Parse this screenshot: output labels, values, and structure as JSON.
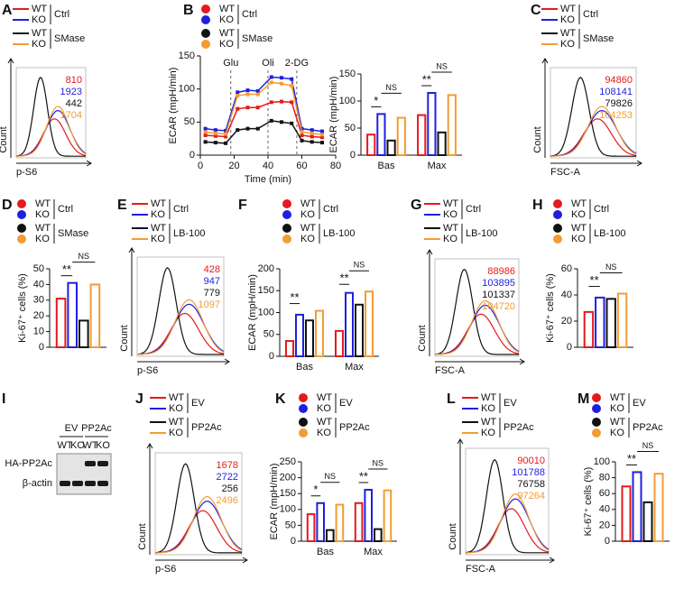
{
  "chart_data": [
    {
      "type": "flow",
      "panel": "A",
      "ylabel": "Count",
      "xlabel": "p-S6",
      "legend_marker": "line",
      "legend_groups": [
        "Ctrl",
        "SMase"
      ],
      "series": [
        {
          "name": "WT",
          "color": "#e41a1c",
          "value": 810
        },
        {
          "name": "KO",
          "color": "#1f1fe0",
          "value": 1923
        },
        {
          "name": "WT",
          "color": "#111111",
          "value": 442
        },
        {
          "name": "KO",
          "color": "#f39c34",
          "value": 1704
        }
      ]
    },
    {
      "type": "line",
      "panel": "B",
      "ylabel": "ECAR (mpH/min)",
      "xlabel": "Time (min)",
      "legend_marker": "dot",
      "legend_groups": [
        "Ctrl",
        "SMase"
      ],
      "xlim": [
        0,
        80
      ],
      "xticks": [
        0,
        20,
        40,
        60,
        80
      ],
      "ylim": [
        0,
        150
      ],
      "yticks": [
        0,
        50,
        100,
        150
      ],
      "vlines": [
        {
          "x": 18,
          "label": "Glu"
        },
        {
          "x": 40,
          "label": "Oli"
        },
        {
          "x": 57,
          "label": "2-DG"
        }
      ],
      "x": [
        3,
        9,
        15,
        22,
        28,
        34,
        42,
        48,
        54,
        60,
        66,
        72
      ],
      "series": [
        {
          "name": "WT",
          "color": "#e41a1c",
          "values": [
            30,
            29,
            28,
            70,
            72,
            72,
            80,
            81,
            80,
            30,
            28,
            27
          ]
        },
        {
          "name": "KO",
          "color": "#1f1fe0",
          "values": [
            40,
            38,
            37,
            95,
            98,
            97,
            118,
            117,
            115,
            40,
            38,
            36
          ]
        },
        {
          "name": "WT",
          "color": "#111111",
          "values": [
            20,
            19,
            18,
            38,
            40,
            40,
            52,
            50,
            48,
            22,
            20,
            19
          ]
        },
        {
          "name": "KO",
          "color": "#f39c34",
          "values": [
            35,
            33,
            32,
            90,
            92,
            92,
            110,
            108,
            105,
            35,
            33,
            31
          ]
        }
      ]
    },
    {
      "type": "bar",
      "ylabel": "ECAR (mpH/min)",
      "categories": [
        "Bas",
        "Max"
      ],
      "ylim": [
        0,
        150
      ],
      "yticks": [
        0,
        50,
        100,
        150
      ],
      "series": [
        {
          "color": "#e41a1c",
          "values": [
            38,
            74
          ]
        },
        {
          "color": "#1f1fe0",
          "values": [
            76,
            115
          ]
        },
        {
          "color": "#111111",
          "values": [
            27,
            42
          ]
        },
        {
          "color": "#f39c34",
          "values": [
            69,
            111
          ]
        }
      ],
      "significance": [
        {
          "label": "*",
          "category": 0,
          "series": [
            0,
            1
          ]
        },
        {
          "label": "NS",
          "category": 0,
          "series": [
            1,
            3
          ]
        },
        {
          "label": "**",
          "category": 1,
          "series": [
            0,
            1
          ]
        },
        {
          "label": "NS",
          "category": 1,
          "series": [
            1,
            3
          ]
        }
      ]
    },
    {
      "type": "flow",
      "panel": "C",
      "ylabel": "Count",
      "xlabel": "FSC-A",
      "legend_marker": "line",
      "legend_groups": [
        "Ctrl",
        "SMase"
      ],
      "series": [
        {
          "name": "WT",
          "color": "#e41a1c",
          "value": 94860
        },
        {
          "name": "KO",
          "color": "#1f1fe0",
          "value": 108141
        },
        {
          "name": "WT",
          "color": "#111111",
          "value": 79826
        },
        {
          "name": "KO",
          "color": "#f39c34",
          "value": 104253
        }
      ]
    },
    {
      "type": "bar",
      "panel": "D",
      "ylabel": "Ki-67⁺ cells (%)",
      "legend_marker": "dot",
      "legend_groups": [
        "Ctrl",
        "SMase"
      ],
      "ylim": [
        0,
        50
      ],
      "yticks": [
        0,
        10,
        20,
        30,
        40,
        50
      ],
      "series": [
        {
          "name": "WT",
          "color": "#e41a1c",
          "values": [
            31
          ]
        },
        {
          "name": "KO",
          "color": "#1f1fe0",
          "values": [
            41
          ]
        },
        {
          "name": "WT",
          "color": "#111111",
          "values": [
            17
          ]
        },
        {
          "name": "KO",
          "color": "#f39c34",
          "values": [
            40
          ]
        }
      ],
      "significance": [
        {
          "label": "**",
          "category": 0,
          "series": [
            0,
            1
          ]
        },
        {
          "label": "NS",
          "category": 0,
          "series": [
            1,
            3
          ]
        }
      ]
    },
    {
      "type": "flow",
      "panel": "E",
      "ylabel": "Count",
      "xlabel": "p-S6",
      "legend_marker": "line",
      "legend_groups": [
        "Ctrl",
        "LB-100"
      ],
      "series": [
        {
          "name": "WT",
          "color": "#e41a1c",
          "value": 428
        },
        {
          "name": "KO",
          "color": "#1f1fe0",
          "value": 947
        },
        {
          "name": "WT",
          "color": "#111111",
          "value": 779
        },
        {
          "name": "KO",
          "color": "#f39c34",
          "value": 1097
        }
      ]
    },
    {
      "type": "bar",
      "panel": "F",
      "ylabel": "ECAR (mpH/min)",
      "legend_marker": "dot",
      "legend_groups": [
        "Ctrl",
        "LB-100"
      ],
      "categories": [
        "Bas",
        "Max"
      ],
      "ylim": [
        0,
        200
      ],
      "yticks": [
        0,
        50,
        100,
        150,
        200
      ],
      "series": [
        {
          "name": "WT",
          "color": "#e41a1c",
          "values": [
            35,
            58
          ]
        },
        {
          "name": "KO",
          "color": "#1f1fe0",
          "values": [
            95,
            145
          ]
        },
        {
          "name": "WT",
          "color": "#111111",
          "values": [
            82,
            118
          ]
        },
        {
          "name": "KO",
          "color": "#f39c34",
          "values": [
            104,
            148
          ]
        }
      ],
      "significance": [
        {
          "label": "**",
          "category": 0,
          "series": [
            0,
            1
          ]
        },
        {
          "label": "**",
          "category": 1,
          "series": [
            0,
            1
          ]
        },
        {
          "label": "NS",
          "category": 1,
          "series": [
            1,
            3
          ]
        }
      ]
    },
    {
      "type": "flow",
      "panel": "G",
      "ylabel": "Count",
      "xlabel": "FSC-A",
      "legend_marker": "line",
      "legend_groups": [
        "Ctrl",
        "LB-100"
      ],
      "series": [
        {
          "name": "WT",
          "color": "#e41a1c",
          "value": 88986
        },
        {
          "name": "KO",
          "color": "#1f1fe0",
          "value": 103895
        },
        {
          "name": "WT",
          "color": "#111111",
          "value": 101337
        },
        {
          "name": "KO",
          "color": "#f39c34",
          "value": 104720
        }
      ]
    },
    {
      "type": "bar",
      "panel": "H",
      "ylabel": "Ki-67⁺ cells (%)",
      "legend_marker": "dot",
      "legend_groups": [
        "Ctrl",
        "LB-100"
      ],
      "ylim": [
        0,
        60
      ],
      "yticks": [
        0,
        20,
        40,
        60
      ],
      "series": [
        {
          "name": "WT",
          "color": "#e41a1c",
          "values": [
            27
          ]
        },
        {
          "name": "KO",
          "color": "#1f1fe0",
          "values": [
            38
          ]
        },
        {
          "name": "WT",
          "color": "#111111",
          "values": [
            37
          ]
        },
        {
          "name": "KO",
          "color": "#f39c34",
          "values": [
            41
          ]
        }
      ],
      "significance": [
        {
          "label": "**",
          "category": 0,
          "series": [
            0,
            1
          ]
        },
        {
          "label": "NS",
          "category": 0,
          "series": [
            1,
            3
          ]
        }
      ]
    },
    {
      "type": "blot",
      "panel": "I",
      "column_groups": [
        "EV",
        "PP2Ac"
      ],
      "lanes": [
        "WT",
        "KO",
        "WT",
        "KO"
      ],
      "rows": [
        "HA-PP2Ac",
        "β-actin"
      ]
    },
    {
      "type": "flow",
      "panel": "J",
      "ylabel": "Count",
      "xlabel": "p-S6",
      "legend_marker": "line",
      "legend_groups": [
        "EV",
        "PP2Ac"
      ],
      "series": [
        {
          "name": "WT",
          "color": "#e41a1c",
          "value": 1678
        },
        {
          "name": "KO",
          "color": "#1f1fe0",
          "value": 2722
        },
        {
          "name": "WT",
          "color": "#111111",
          "value": 256
        },
        {
          "name": "KO",
          "color": "#f39c34",
          "value": 2496
        }
      ]
    },
    {
      "type": "bar",
      "panel": "K",
      "ylabel": "ECAR (mpH/min)",
      "legend_marker": "dot",
      "legend_groups": [
        "EV",
        "PP2Ac"
      ],
      "categories": [
        "Bas",
        "Max"
      ],
      "ylim": [
        0,
        250
      ],
      "yticks": [
        0,
        50,
        100,
        150,
        200,
        250
      ],
      "series": [
        {
          "name": "WT",
          "color": "#e41a1c",
          "values": [
            85,
            120
          ]
        },
        {
          "name": "KO",
          "color": "#1f1fe0",
          "values": [
            120,
            162
          ]
        },
        {
          "name": "WT",
          "color": "#111111",
          "values": [
            35,
            38
          ]
        },
        {
          "name": "KO",
          "color": "#f39c34",
          "values": [
            115,
            160
          ]
        }
      ],
      "significance": [
        {
          "label": "*",
          "category": 0,
          "series": [
            0,
            1
          ]
        },
        {
          "label": "NS",
          "category": 0,
          "series": [
            1,
            3
          ]
        },
        {
          "label": "**",
          "category": 1,
          "series": [
            0,
            1
          ]
        },
        {
          "label": "NS",
          "category": 1,
          "series": [
            1,
            3
          ]
        }
      ]
    },
    {
      "type": "flow",
      "panel": "L",
      "ylabel": "Count",
      "xlabel": "FSC-A",
      "legend_marker": "line",
      "legend_groups": [
        "EV",
        "PP2Ac"
      ],
      "series": [
        {
          "name": "WT",
          "color": "#e41a1c",
          "value": 90010
        },
        {
          "name": "KO",
          "color": "#1f1fe0",
          "value": 101788
        },
        {
          "name": "WT",
          "color": "#111111",
          "value": 76758
        },
        {
          "name": "KO",
          "color": "#f39c34",
          "value": 97264
        }
      ]
    },
    {
      "type": "bar",
      "panel": "M",
      "ylabel": "Ki-67⁺ cells (%)",
      "legend_marker": "dot",
      "legend_groups": [
        "EV",
        "PP2Ac"
      ],
      "ylim": [
        0,
        100
      ],
      "yticks": [
        0,
        20,
        40,
        60,
        80,
        100
      ],
      "series": [
        {
          "name": "WT",
          "color": "#e41a1c",
          "values": [
            69
          ]
        },
        {
          "name": "KO",
          "color": "#1f1fe0",
          "values": [
            87
          ]
        },
        {
          "name": "WT",
          "color": "#111111",
          "values": [
            49
          ]
        },
        {
          "name": "KO",
          "color": "#f39c34",
          "values": [
            85
          ]
        }
      ],
      "significance": [
        {
          "label": "**",
          "category": 0,
          "series": [
            0,
            1
          ]
        },
        {
          "label": "NS",
          "category": 0,
          "series": [
            1,
            3
          ]
        }
      ]
    }
  ]
}
